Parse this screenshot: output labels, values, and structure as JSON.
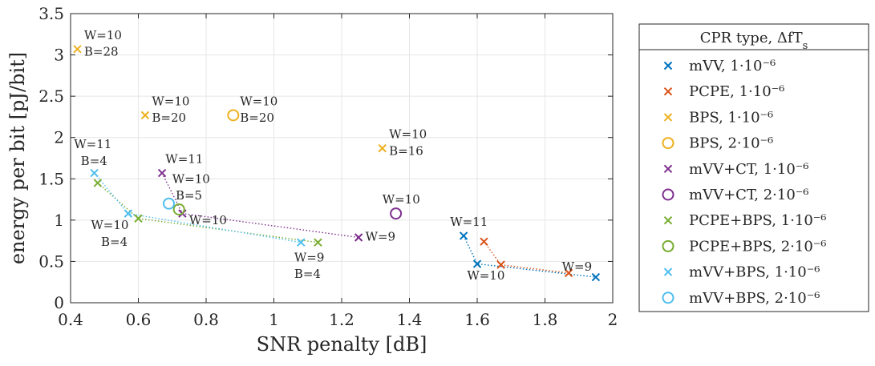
{
  "chart_data": {
    "type": "scatter",
    "xlabel": "SNR penalty [dB]",
    "ylabel": "energy per bit [pJ/bit]",
    "xlim": [
      0.4,
      2.0
    ],
    "ylim": [
      0,
      3.5
    ],
    "xticks": [
      "0.4",
      "0.6",
      "0.8",
      "1",
      "1.2",
      "1.4",
      "1.6",
      "1.8",
      "2"
    ],
    "yticks": [
      "0",
      "0.5",
      "1",
      "1.5",
      "2",
      "2.5",
      "3",
      "3.5"
    ],
    "grid": true,
    "legend": {
      "title": "CPR type, ΔfT_s",
      "placement": "outside-right"
    },
    "series": [
      {
        "name": "mVV, 1·10⁻⁶",
        "marker": "x",
        "color": "#0072BD",
        "connected": true,
        "x": [
          1.56,
          1.6,
          1.95
        ],
        "y": [
          0.81,
          0.47,
          0.31
        ]
      },
      {
        "name": "PCPE, 1·10⁻⁶",
        "marker": "x",
        "color": "#D95319",
        "connected": true,
        "x": [
          1.62,
          1.67,
          1.87
        ],
        "y": [
          0.74,
          0.46,
          0.36
        ]
      },
      {
        "name": "BPS, 1·10⁻⁶",
        "marker": "x",
        "color": "#EDB120",
        "connected": false,
        "x": [
          0.42,
          0.62,
          1.32
        ],
        "y": [
          3.07,
          2.27,
          1.87
        ]
      },
      {
        "name": "BPS, 2·10⁻⁶",
        "marker": "o",
        "color": "#EDB120",
        "connected": false,
        "x": [
          0.88
        ],
        "y": [
          2.27
        ]
      },
      {
        "name": "mVV+CT, 1·10⁻⁶",
        "marker": "x",
        "color": "#7E2F8E",
        "connected": true,
        "x": [
          0.67,
          0.73,
          1.25
        ],
        "y": [
          1.57,
          1.08,
          0.79
        ]
      },
      {
        "name": "mVV+CT, 2·10⁻⁶",
        "marker": "o",
        "color": "#7E2F8E",
        "connected": false,
        "x": [
          1.36
        ],
        "y": [
          1.08
        ]
      },
      {
        "name": "PCPE+BPS, 1·10⁻⁶",
        "marker": "x",
        "color": "#77AC30",
        "connected": true,
        "x": [
          0.48,
          0.6,
          1.13
        ],
        "y": [
          1.45,
          1.02,
          0.73
        ]
      },
      {
        "name": "PCPE+BPS, 2·10⁻⁶",
        "marker": "o",
        "color": "#77AC30",
        "connected": false,
        "x": [
          0.72
        ],
        "y": [
          1.13
        ]
      },
      {
        "name": "mVV+BPS, 1·10⁻⁶",
        "marker": "x",
        "color": "#4DBEEE",
        "connected": true,
        "x": [
          0.47,
          0.57,
          1.08
        ],
        "y": [
          1.57,
          1.08,
          0.73
        ]
      },
      {
        "name": "mVV+BPS, 2·10⁻⁶",
        "marker": "o",
        "color": "#4DBEEE",
        "connected": false,
        "x": [
          0.69
        ],
        "y": [
          1.2
        ]
      }
    ],
    "annotations": [
      {
        "text": "W=10",
        "x": 0.44,
        "y": 3.19
      },
      {
        "text": "B=28",
        "x": 0.44,
        "y": 2.99
      },
      {
        "text": "W=10",
        "x": 0.64,
        "y": 2.39
      },
      {
        "text": "B=20",
        "x": 0.64,
        "y": 2.19
      },
      {
        "text": "W=10",
        "x": 0.9,
        "y": 2.39
      },
      {
        "text": "B=20",
        "x": 0.9,
        "y": 2.19
      },
      {
        "text": "W=10",
        "x": 1.34,
        "y": 1.99
      },
      {
        "text": "B=16",
        "x": 1.34,
        "y": 1.79
      },
      {
        "text": "W=11",
        "x": 0.41,
        "y": 1.87
      },
      {
        "text": "B=4",
        "x": 0.43,
        "y": 1.67
      },
      {
        "text": "W=11",
        "x": 0.68,
        "y": 1.69
      },
      {
        "text": "W=10",
        "x": 0.7,
        "y": 1.45
      },
      {
        "text": "B=5",
        "x": 0.71,
        "y": 1.25
      },
      {
        "text": "W=10",
        "x": 0.46,
        "y": 0.89
      },
      {
        "text": "B=4",
        "x": 0.49,
        "y": 0.69
      },
      {
        "text": "W=10",
        "x": 0.75,
        "y": 0.95
      },
      {
        "text": "W=10",
        "x": 1.32,
        "y": 1.2
      },
      {
        "text": "W=9",
        "x": 1.27,
        "y": 0.75
      },
      {
        "text": "W=9",
        "x": 1.06,
        "y": 0.5
      },
      {
        "text": "B=4",
        "x": 1.06,
        "y": 0.3
      },
      {
        "text": "W=11",
        "x": 1.52,
        "y": 0.93
      },
      {
        "text": "W=10",
        "x": 1.57,
        "y": 0.28
      },
      {
        "text": "W=9",
        "x": 1.85,
        "y": 0.39
      }
    ]
  }
}
